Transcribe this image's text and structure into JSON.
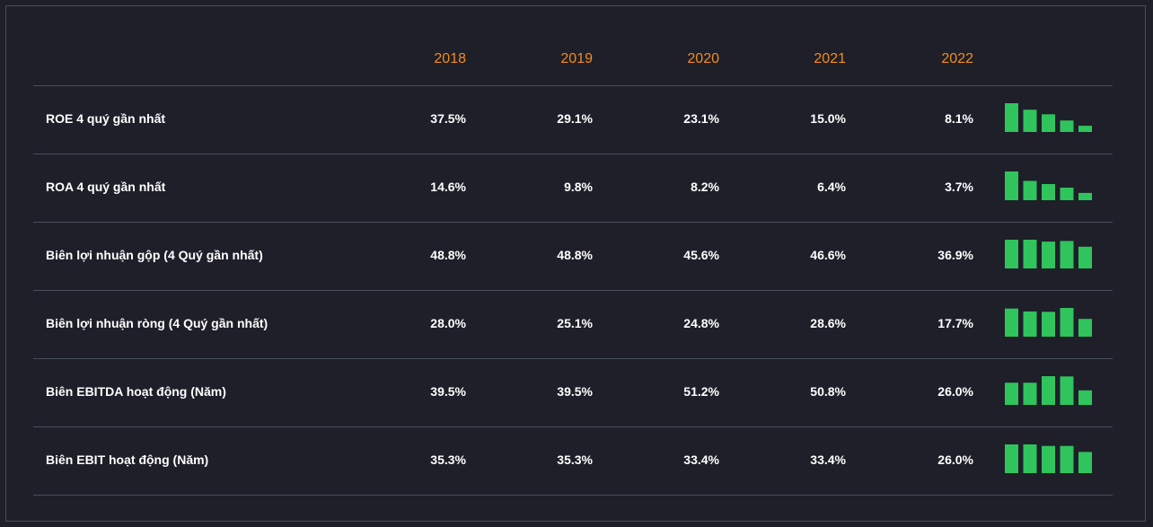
{
  "years": [
    "2018",
    "2019",
    "2020",
    "2021",
    "2022"
  ],
  "rows": [
    {
      "label": "ROE 4 quý gần nhất",
      "values": [
        "37.5%",
        "29.1%",
        "23.1%",
        "15.0%",
        "8.1%"
      ],
      "numbers": [
        37.5,
        29.1,
        23.1,
        15.0,
        8.1
      ]
    },
    {
      "label": "ROA 4 quý gần nhất",
      "values": [
        "14.6%",
        "9.8%",
        "8.2%",
        "6.4%",
        "3.7%"
      ],
      "numbers": [
        14.6,
        9.8,
        8.2,
        6.4,
        3.7
      ]
    },
    {
      "label": "Biên lợi nhuận gộp (4 Quý gần nhất)",
      "values": [
        "48.8%",
        "48.8%",
        "45.6%",
        "46.6%",
        "36.9%"
      ],
      "numbers": [
        48.8,
        48.8,
        45.6,
        46.6,
        36.9
      ]
    },
    {
      "label": "Biên lợi nhuận ròng (4 Quý gần nhất)",
      "values": [
        "28.0%",
        "25.1%",
        "24.8%",
        "28.6%",
        "17.7%"
      ],
      "numbers": [
        28.0,
        25.1,
        24.8,
        28.6,
        17.7
      ]
    },
    {
      "label": "Biên EBITDA hoạt động (Năm)",
      "values": [
        "39.5%",
        "39.5%",
        "51.2%",
        "50.8%",
        "26.0%"
      ],
      "numbers": [
        39.5,
        39.5,
        51.2,
        50.8,
        26.0
      ]
    },
    {
      "label": "Biên EBIT hoạt động (Năm)",
      "values": [
        "35.3%",
        "35.3%",
        "33.4%",
        "33.4%",
        "26.0%"
      ],
      "numbers": [
        35.3,
        35.3,
        33.4,
        33.4,
        26.0
      ]
    }
  ],
  "colors": {
    "background": "#1e1f29",
    "year_header": "#f28c1c",
    "text": "#ffffff",
    "divider": "#4a4d5c",
    "sparkbar": "#2fc45c"
  }
}
